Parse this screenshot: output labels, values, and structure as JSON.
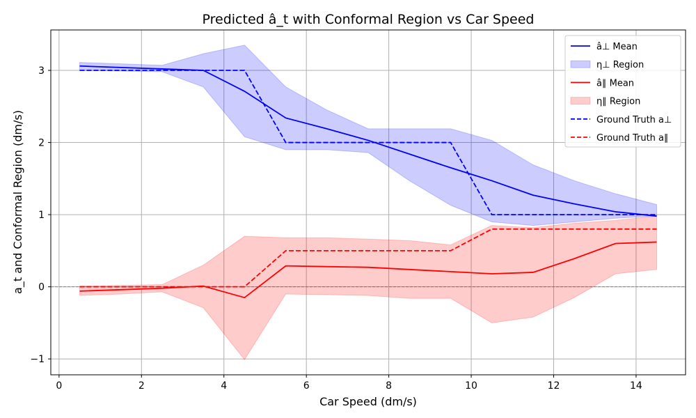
{
  "chart_data": {
    "type": "line",
    "title": "Predicted â_t with Conformal Region vs Car Speed",
    "xlabel": "Car Speed (dm/s)",
    "ylabel": "a_t and Conformal Region (dm/s)",
    "xlim": [
      -0.2,
      15.2
    ],
    "ylim": [
      -1.22,
      3.56
    ],
    "xticks": [
      0,
      2,
      4,
      6,
      8,
      10,
      12,
      14
    ],
    "yticks": [
      -1,
      0,
      1,
      2,
      3
    ],
    "xtick_labels": [
      "0",
      "2",
      "4",
      "6",
      "8",
      "10",
      "12",
      "14"
    ],
    "ytick_labels": [
      "−1",
      "0",
      "1",
      "2",
      "3"
    ],
    "grid": true,
    "legend_position": "top-right",
    "x": [
      0.5,
      1.5,
      2.5,
      3.5,
      4.5,
      5.5,
      6.5,
      7.5,
      8.5,
      9.5,
      10.5,
      11.5,
      12.5,
      13.5,
      14.5
    ],
    "series": [
      {
        "name": "â⊥ Mean",
        "kind": "line",
        "color": "#0000ff",
        "values": [
          3.06,
          3.04,
          3.02,
          3.0,
          2.71,
          2.34,
          2.19,
          2.03,
          1.84,
          1.65,
          1.47,
          1.27,
          1.15,
          1.04,
          0.98
        ]
      },
      {
        "name": "η⊥ Region",
        "kind": "band",
        "color": "#0000ff",
        "lower": [
          3.0,
          2.99,
          2.98,
          2.77,
          2.08,
          1.9,
          1.9,
          1.86,
          1.47,
          1.13,
          0.9,
          0.85,
          0.9,
          0.95,
          0.98
        ],
        "upper": [
          3.11,
          3.09,
          3.07,
          3.23,
          3.35,
          2.77,
          2.45,
          2.19,
          2.19,
          2.19,
          2.03,
          1.69,
          1.47,
          1.29,
          1.14
        ]
      },
      {
        "name": "â∥ Mean",
        "kind": "line",
        "color": "#ff0000",
        "values": [
          -0.06,
          -0.04,
          -0.02,
          0.01,
          -0.15,
          0.29,
          0.28,
          0.27,
          0.24,
          0.21,
          0.18,
          0.2,
          0.39,
          0.6,
          0.62
        ]
      },
      {
        "name": "η∥ Region",
        "kind": "band",
        "color": "#ff0000",
        "lower": [
          -0.12,
          -0.1,
          -0.07,
          -0.29,
          -1.01,
          -0.1,
          -0.11,
          -0.12,
          -0.16,
          -0.16,
          -0.5,
          -0.42,
          -0.15,
          0.18,
          0.24
        ],
        "upper": [
          0.01,
          0.02,
          0.03,
          0.3,
          0.7,
          0.68,
          0.68,
          0.66,
          0.64,
          0.58,
          0.85,
          0.82,
          0.88,
          0.92,
          0.98
        ]
      },
      {
        "name": "Ground Truth a⊥",
        "kind": "dashed",
        "color": "#0000ff",
        "values": [
          3.0,
          3.0,
          3.0,
          3.0,
          3.0,
          2.0,
          2.0,
          2.0,
          2.0,
          2.0,
          1.0,
          1.0,
          1.0,
          1.0,
          1.0
        ]
      },
      {
        "name": "Ground Truth a∥",
        "kind": "dashed",
        "color": "#ff0000",
        "values": [
          0.0,
          0.0,
          0.0,
          0.0,
          0.0,
          0.5,
          0.5,
          0.5,
          0.5,
          0.5,
          0.8,
          0.8,
          0.8,
          0.8,
          0.8
        ]
      }
    ],
    "reference_line": {
      "y": 0,
      "color": "#808080",
      "style": "dashed"
    }
  }
}
